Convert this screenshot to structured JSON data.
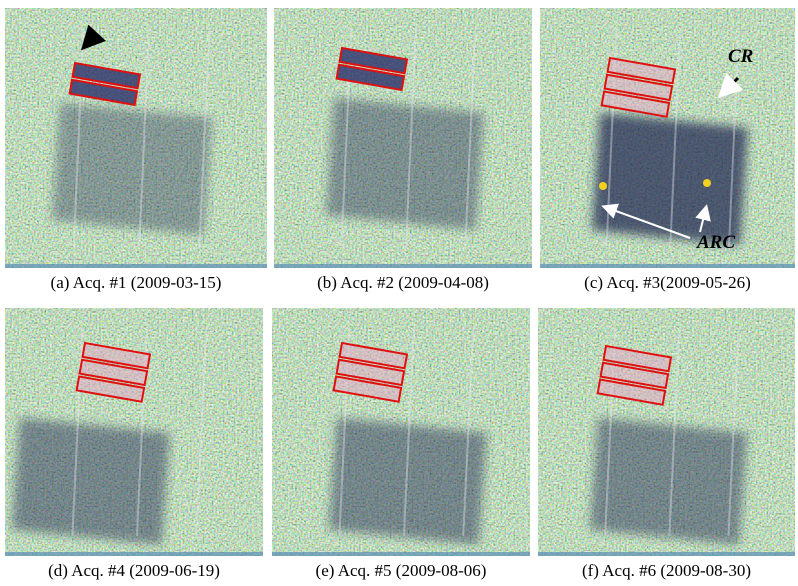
{
  "figure": {
    "panels": [
      {
        "caption": "(a) Acq. #1 (2009-03-15)"
      },
      {
        "caption": "(b) Acq. #2 (2009-04-08)"
      },
      {
        "caption": "(c) Acq. #3(2009-05-26)"
      },
      {
        "caption": "(d) Acq. #4 (2009-06-19)"
      },
      {
        "caption": "(e) Acq. #5 (2009-08-06)"
      },
      {
        "caption": "(f) Acq. #6 (2009-08-30)"
      }
    ],
    "annotations": {
      "cr": "CR",
      "arc": "ARC"
    }
  }
}
